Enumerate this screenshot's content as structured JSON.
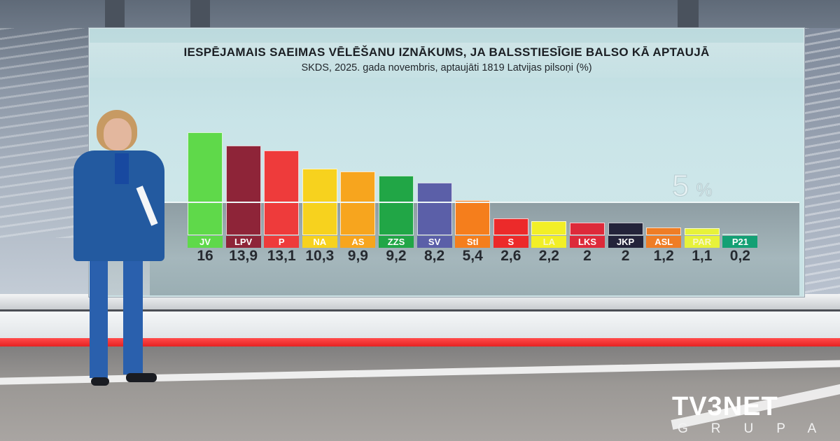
{
  "chart_data": {
    "type": "bar",
    "title": "IESPĒJAMAIS SAEIMAS VĒLĒŠANU IZNĀKUMS, JA BALSSTIESĪGIE BALSO KĀ APTAUJĀ",
    "subtitle": "SKDS, 2025. gada novembris, aptaujāti 1819 Latvijas pilsoņi (%)",
    "xlabel": "",
    "ylabel": "%",
    "categories": [
      "JV",
      "LPV",
      "P",
      "NA",
      "AS",
      "ZZS",
      "SV",
      "Stl",
      "S",
      "LA",
      "LKS",
      "JKP",
      "ASL",
      "PAR",
      "P21"
    ],
    "values": [
      16,
      13.9,
      13.1,
      10.3,
      9.9,
      9.2,
      8.2,
      5.4,
      2.6,
      2.2,
      2,
      2,
      1.2,
      1.1,
      0.2
    ],
    "value_labels": [
      "16",
      "13,9",
      "13,1",
      "10,3",
      "9,9",
      "9,2",
      "8,2",
      "5,4",
      "2,6",
      "2,2",
      "2",
      "2",
      "1,2",
      "1,1",
      "0,2"
    ],
    "colors": [
      "#5fd94a",
      "#8e2438",
      "#ee3b3b",
      "#f7d21e",
      "#f7a51e",
      "#21a646",
      "#5b5fa8",
      "#f57e1c",
      "#ec2a2a",
      "#f2ef27",
      "#dd2a3a",
      "#23233a",
      "#ef7d25",
      "#e7f23a",
      "#13a074"
    ],
    "label_text_colors": [
      "#ffffff",
      "#ffffff",
      "#ffffff",
      "#ffffff",
      "#ffffff",
      "#ffffff",
      "#ffffff",
      "#ffffff",
      "#ffffff",
      "#ffffff",
      "#ffffff",
      "#ffffff",
      "#ffffff",
      "#ffffff",
      "#ffffff"
    ],
    "threshold": {
      "value": 5,
      "label": "5",
      "unit": "%"
    },
    "ylim": [
      0,
      16
    ],
    "grid": false,
    "legend": "none"
  },
  "overlay": {
    "logo_main": "TV3NET",
    "logo_sub": "GRUPA"
  }
}
